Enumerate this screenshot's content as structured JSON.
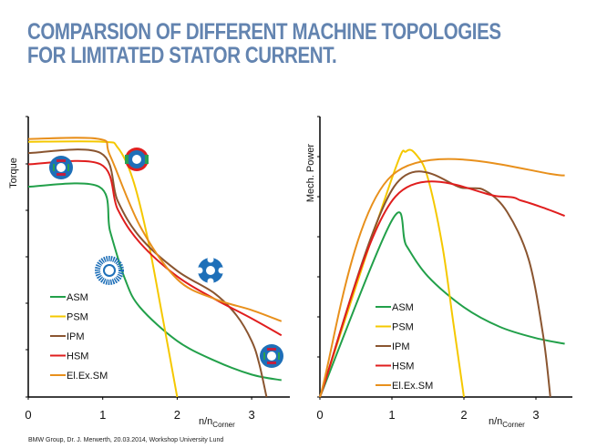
{
  "title": {
    "line1": "COMPARSION OF DIFFERENT MACHINE TOPOLOGIES",
    "line2": "FOR LIMITATED STATOR CURRENT."
  },
  "footer": "BMW Group, Dr. J. Merwerth, 20.03.2014, Workshop University Lund",
  "chart_data": [
    {
      "type": "line",
      "ylabel": "Torque",
      "xlabel": "n/n",
      "xlabel_sub": "Corner",
      "xticks": [
        "0",
        "1",
        "2",
        "3"
      ],
      "xlim": [
        0,
        3.5
      ],
      "ylim": [
        0,
        1
      ],
      "legend_position": "bottom-left",
      "series": [
        {
          "name": "ASM",
          "color": "#22a04a",
          "points": [
            [
              0,
              0.75
            ],
            [
              0.95,
              0.75
            ],
            [
              1.1,
              0.59
            ],
            [
              1.3,
              0.42
            ],
            [
              1.5,
              0.32
            ],
            [
              2,
              0.2
            ],
            [
              2.5,
              0.13
            ],
            [
              3,
              0.08
            ],
            [
              3.4,
              0.06
            ]
          ]
        },
        {
          "name": "PSM",
          "color": "#f5c800",
          "points": [
            [
              0,
              0.91
            ],
            [
              1.0,
              0.91
            ],
            [
              1.2,
              0.89
            ],
            [
              1.4,
              0.78
            ],
            [
              1.6,
              0.57
            ],
            [
              1.8,
              0.29
            ],
            [
              2.0,
              0
            ]
          ]
        },
        {
          "name": "IPM",
          "color": "#8a5530",
          "points": [
            [
              0,
              0.87
            ],
            [
              0.97,
              0.87
            ],
            [
              1.2,
              0.7
            ],
            [
              1.5,
              0.57
            ],
            [
              2,
              0.45
            ],
            [
              2.5,
              0.37
            ],
            [
              2.8,
              0.29
            ],
            [
              3.0,
              0.2
            ],
            [
              3.1,
              0.12
            ],
            [
              3.2,
              0
            ]
          ]
        },
        {
          "name": "HSM",
          "color": "#e01e1e",
          "points": [
            [
              0,
              0.83
            ],
            [
              0.97,
              0.83
            ],
            [
              1.2,
              0.67
            ],
            [
              1.5,
              0.55
            ],
            [
              2,
              0.43
            ],
            [
              2.5,
              0.35
            ],
            [
              3,
              0.28
            ],
            [
              3.4,
              0.22
            ]
          ]
        },
        {
          "name": "El.Ex.SM",
          "color": "#e8901c",
          "points": [
            [
              0,
              0.92
            ],
            [
              0.95,
              0.92
            ],
            [
              1.1,
              0.86
            ],
            [
              1.5,
              0.61
            ],
            [
              2,
              0.42
            ],
            [
              2.5,
              0.35
            ],
            [
              3,
              0.31
            ],
            [
              3.4,
              0.27
            ]
          ]
        }
      ]
    },
    {
      "type": "line",
      "ylabel": "Mech. Power",
      "xlabel": "n/n",
      "xlabel_sub": "Corner",
      "xticks": [
        "0",
        "1",
        "2",
        "3"
      ],
      "xlim": [
        0,
        3.5
      ],
      "ylim": [
        0,
        1
      ],
      "legend_position": "bottom-center",
      "series": [
        {
          "name": "ASM",
          "color": "#22a04a",
          "points": [
            [
              0,
              0
            ],
            [
              1.0,
              0.63
            ],
            [
              1.2,
              0.54
            ],
            [
              1.5,
              0.43
            ],
            [
              2,
              0.32
            ],
            [
              2.5,
              0.25
            ],
            [
              3,
              0.21
            ],
            [
              3.4,
              0.19
            ]
          ]
        },
        {
          "name": "PSM",
          "color": "#f5c800",
          "points": [
            [
              0,
              0
            ],
            [
              1.0,
              0.78
            ],
            [
              1.2,
              0.876
            ],
            [
              1.35,
              0.86
            ],
            [
              1.5,
              0.78
            ],
            [
              1.7,
              0.54
            ],
            [
              1.85,
              0.27
            ],
            [
              2.0,
              0
            ]
          ]
        },
        {
          "name": "IPM",
          "color": "#8a5530",
          "points": [
            [
              0,
              0
            ],
            [
              1.03,
              0.75
            ],
            [
              2.0,
              0.745
            ],
            [
              2.3,
              0.735
            ],
            [
              2.6,
              0.66
            ],
            [
              2.9,
              0.49
            ],
            [
              3.1,
              0.22
            ],
            [
              3.2,
              0
            ]
          ]
        },
        {
          "name": "HSM",
          "color": "#e01e1e",
          "points": [
            [
              0,
              0
            ],
            [
              1.05,
              0.715
            ],
            [
              2.5,
              0.715
            ],
            [
              2.8,
              0.7
            ],
            [
              3.1,
              0.675
            ],
            [
              3.4,
              0.646
            ]
          ]
        },
        {
          "name": "El.Ex.SM",
          "color": "#e8901c",
          "points": [
            [
              0,
              0
            ],
            [
              1.0,
              0.79
            ],
            [
              3.4,
              0.79
            ]
          ]
        }
      ]
    }
  ]
}
